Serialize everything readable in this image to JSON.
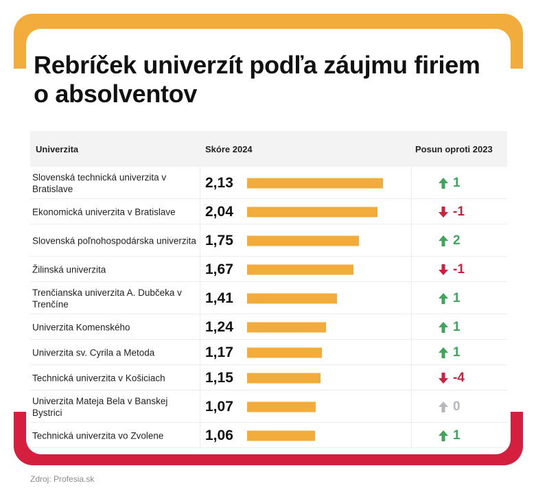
{
  "title": "Rebríček univerzít podľa záujmu firiem o absolventov",
  "source": "Zdroj: Profesia.sk",
  "colors": {
    "top_frame": "#f2ac3c",
    "bottom_frame": "#d41f3e",
    "bar": "#f2ac3c",
    "up": "#3fa55a",
    "down": "#cf1f3c",
    "neutral": "#b6b6bd"
  },
  "chart_data": {
    "type": "table",
    "columns": [
      "Univerzita",
      "Skóre 2024",
      "Posun oproti 2023"
    ],
    "xlim": [
      0,
      2.13
    ],
    "rows": [
      {
        "university": "Slovenská technická univerzita v Bratislave",
        "score": 2.13,
        "score_label": "2,13",
        "shift": 1,
        "shift_label": "1",
        "direction": "up"
      },
      {
        "university": "Ekonomická univerzita v Bratislave",
        "score": 2.04,
        "score_label": "2,04",
        "shift": -1,
        "shift_label": "-1",
        "direction": "down"
      },
      {
        "university": "Slovenská poľnohospodárska univerzita",
        "score": 1.75,
        "score_label": "1,75",
        "shift": 2,
        "shift_label": "2",
        "direction": "up"
      },
      {
        "university": "Žilinská univerzita",
        "score": 1.67,
        "score_label": "1,67",
        "shift": -1,
        "shift_label": "-1",
        "direction": "down"
      },
      {
        "university": "Trenčianska univerzita A. Dubčeka v Trenčíne",
        "score": 1.41,
        "score_label": "1,41",
        "shift": 1,
        "shift_label": "1",
        "direction": "up"
      },
      {
        "university": "Univerzita Komenského",
        "score": 1.24,
        "score_label": "1,24",
        "shift": 1,
        "shift_label": "1",
        "direction": "up"
      },
      {
        "university": "Univerzita sv. Cyrila a Metoda",
        "score": 1.17,
        "score_label": "1,17",
        "shift": 1,
        "shift_label": "1",
        "direction": "up"
      },
      {
        "university": "Technická univerzita v Košiciach",
        "score": 1.15,
        "score_label": "1,15",
        "shift": -4,
        "shift_label": "-4",
        "direction": "down"
      },
      {
        "university": "Univerzita Mateja Bela v Banskej Bystrici",
        "score": 1.07,
        "score_label": "1,07",
        "shift": 0,
        "shift_label": "0",
        "direction": "neutral"
      },
      {
        "university": "Technická univerzita vo Zvolene",
        "score": 1.06,
        "score_label": "1,06",
        "shift": 1,
        "shift_label": "1",
        "direction": "up"
      }
    ]
  }
}
